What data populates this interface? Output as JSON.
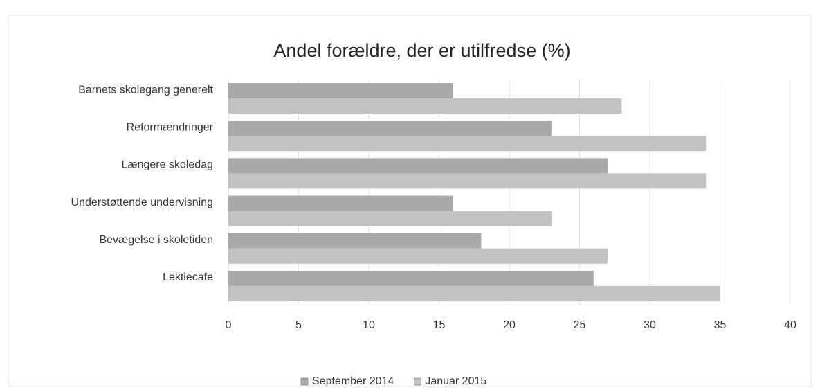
{
  "chart_data": {
    "type": "hbar",
    "title": "Andel forældre, der er utilfredse (%)",
    "categories": [
      "Barnets skolegang generelt",
      "Reformændringer",
      "Længere skoledag",
      "Understøttende undervisning",
      "Bevægelse i skoletiden",
      "Lektiecafe"
    ],
    "series": [
      {
        "name": "September 2014",
        "color": "#a9a9a9",
        "values": [
          16,
          23,
          27,
          16,
          18,
          26
        ]
      },
      {
        "name": "Januar 2015",
        "color": "#c2c2c2",
        "values": [
          28,
          34,
          34,
          23,
          27,
          35
        ]
      }
    ],
    "xlim": [
      0,
      40
    ],
    "xticks": [
      0,
      5,
      10,
      15,
      20,
      25,
      30,
      35,
      40
    ],
    "grid": true,
    "legend": "bottom"
  }
}
